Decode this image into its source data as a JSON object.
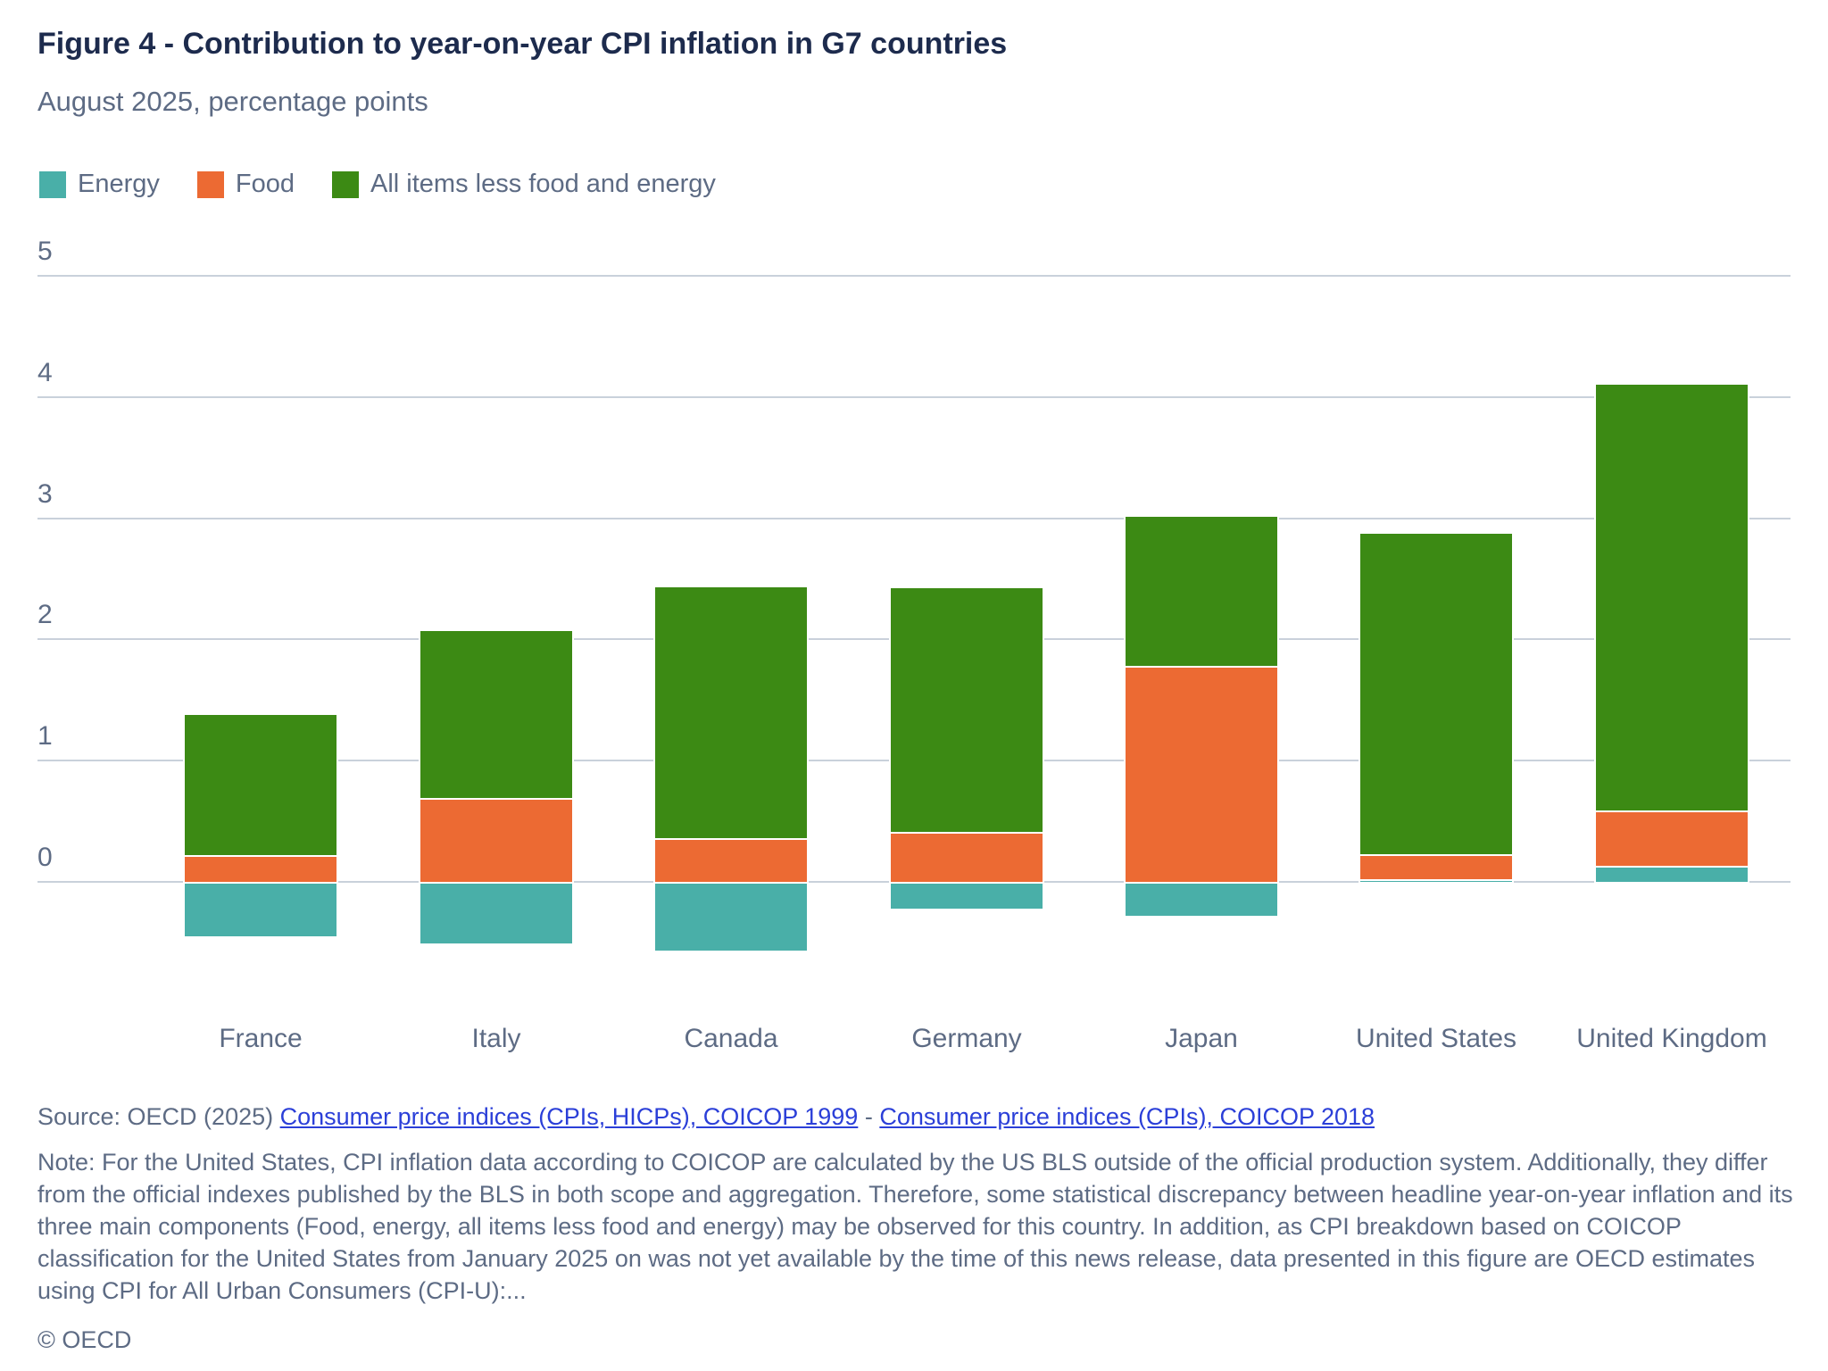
{
  "header": {
    "title": "Figure 4 - Contribution to year-on-year CPI inflation in G7 countries",
    "subtitle": "August 2025, percentage points"
  },
  "chart_data": {
    "type": "bar",
    "stacked": true,
    "title": "Figure 4 - Contribution to year-on-year CPI inflation in G7 countries",
    "subtitle": "August 2025, percentage points",
    "categories": [
      "France",
      "Italy",
      "Canada",
      "Germany",
      "Japan",
      "United States",
      "United Kingdom"
    ],
    "series": [
      {
        "name": "Energy",
        "color": "#49afa8",
        "values": [
          -0.45,
          -0.51,
          -0.57,
          -0.22,
          -0.28,
          0.02,
          0.13
        ]
      },
      {
        "name": "Food",
        "color": "#ec6a33",
        "values": [
          0.22,
          0.69,
          0.36,
          0.41,
          1.78,
          0.21,
          0.46
        ]
      },
      {
        "name": "All items less food and energy",
        "color": "#3c8a14",
        "values": [
          1.16,
          1.38,
          2.07,
          2.01,
          1.23,
          2.64,
          3.51
        ]
      }
    ],
    "stack_totals": [
      1.38,
      2.07,
      2.43,
      2.42,
      3.01,
      2.87,
      4.1
    ],
    "xlabel": "",
    "ylabel": "percentage points",
    "yticks": [
      0,
      1,
      2,
      3,
      4,
      5
    ],
    "ylim": [
      -0.8,
      5.2
    ],
    "grid": true,
    "legend_position": "top-left",
    "gridline_color": "#c9d1db",
    "text_color": "#5d6b84",
    "title_color": "#1d2b4d"
  },
  "footer": {
    "source_prefix": "Source: OECD (2025) ",
    "links": [
      {
        "text": "Consumer price indices (CPIs, HICPs), COICOP 1999"
      },
      {
        "text": "Consumer price indices (CPIs), COICOP 2018"
      }
    ],
    "separator": " - ",
    "link_color": "#2b3fd8",
    "note": "Note: For the United States, CPI inflation data according to COICOP are calculated by the US BLS outside of the official production system. Additionally, they differ from the official indexes published by the BLS in both scope and aggregation. Therefore, some statistical discrepancy between headline year-on-year inflation and its three main components (Food, energy, all items less food and energy) may be observed for this country. In addition, as CPI breakdown based on COICOP classification for the United States from January 2025 on was not yet available by the time of this news release, data presented in this figure are OECD estimates using CPI for All Urban Consumers (CPI-U):...",
    "copyright": "© OECD"
  }
}
